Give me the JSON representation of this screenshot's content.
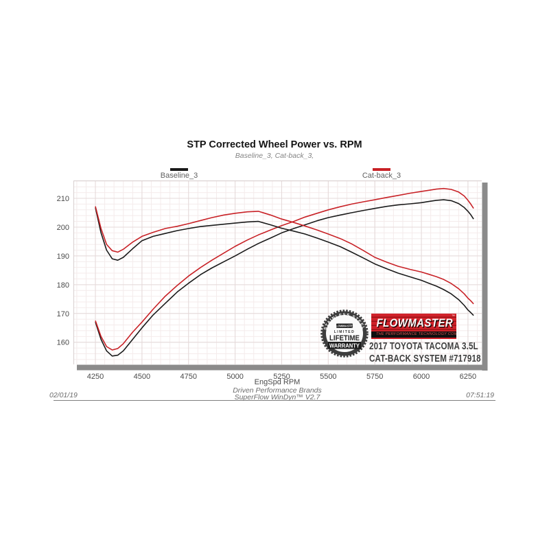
{
  "page": {
    "title": "STP Corrected Wheel Power vs. RPM",
    "subtitle": "Baseline_3, Cat-back_3,"
  },
  "legend": [
    {
      "label": "Baseline_3",
      "color": "#1a1a1a"
    },
    {
      "label": "Cat-back_3",
      "color": "#c82126"
    }
  ],
  "footer": {
    "brand_line1": "Driven Performance Brands",
    "brand_line2": "SuperFlow WinDyn™ V2.7",
    "date": "02/01/19",
    "time": "07:51:19"
  },
  "logo": {
    "badge": {
      "arc_top": "STAINLESS STEEL",
      "brand": "FLOWMASTER",
      "limited": "LIMITED",
      "line1": "LIFETIME",
      "line2": "WARRANTY"
    },
    "flowmaster": {
      "brand": "FLOWMASTER",
      "tm": "™",
      "tagline": "THE PERFORMANCE TECHNOLOGY COMPANY"
    },
    "vehicle_line1": "2017 TOYOTA TACOMA 3.5L",
    "vehicle_line2": "CAT-BACK SYSTEM #717918"
  },
  "chart_data": {
    "type": "line",
    "title": "STP Corrected Wheel Power vs. RPM",
    "subtitle": "Baseline_3, Cat-back_3,",
    "xlabel": "EngSpd  RPM",
    "x_ticks": [
      4250,
      4500,
      4750,
      5000,
      5250,
      5500,
      5750,
      6000,
      6250
    ],
    "y_ticks": [
      160,
      170,
      180,
      190,
      200,
      210
    ],
    "xlim": [
      4132,
      6324
    ],
    "ylim": [
      152.3,
      216.2
    ],
    "grid": {
      "x_minor_step": 50,
      "x_major_step": 250,
      "y_minor_step": 2,
      "y_major_step": 10,
      "minor_color": "#f4ebeb",
      "major_color": "#e4d9d9"
    },
    "legend_position": "top",
    "x": [
      4250,
      4280,
      4310,
      4340,
      4370,
      4400,
      4450,
      4500,
      4560,
      4625,
      4690,
      4750,
      4815,
      4875,
      4940,
      5000,
      5065,
      5125,
      5190,
      5250,
      5315,
      5375,
      5440,
      5500,
      5565,
      5625,
      5690,
      5750,
      5815,
      5875,
      5940,
      6000,
      6040,
      6080,
      6120,
      6160,
      6200,
      6230,
      6250,
      6265,
      6280
    ],
    "series": [
      {
        "name": "Baseline_3 power (rising curve)",
        "legend": "Baseline_3",
        "color": "#1a1a1a",
        "values": [
          167,
          161,
          157,
          155.2,
          155.5,
          157,
          161,
          165,
          169.5,
          173.5,
          177.5,
          180.5,
          183.5,
          185.8,
          188,
          190,
          192.3,
          194.3,
          196.2,
          198,
          199.5,
          200.8,
          202.2,
          203.3,
          204.2,
          205,
          205.8,
          206.5,
          207.2,
          207.7,
          208.1,
          208.5,
          208.9,
          209.3,
          209.5,
          209.2,
          208.2,
          206.8,
          205.5,
          204.3,
          202.8
        ]
      },
      {
        "name": "Cat-back_3 power (rising curve)",
        "legend": "Cat-back_3",
        "color": "#c82126",
        "values": [
          167.5,
          162,
          158.5,
          157.3,
          157.8,
          159.5,
          163.5,
          167,
          171.5,
          176,
          179.8,
          183,
          186,
          188.5,
          191,
          193.3,
          195.5,
          197.3,
          199,
          200.5,
          202,
          203.5,
          204.8,
          206,
          207.1,
          208,
          208.8,
          209.5,
          210.3,
          211,
          211.8,
          212.4,
          212.8,
          213.2,
          213.4,
          213.1,
          212.2,
          210.8,
          209.3,
          208,
          206.5
        ]
      },
      {
        "name": "Baseline_3 upper (falling curve)",
        "legend": "Baseline_3",
        "color": "#1a1a1a",
        "values": [
          206.8,
          198,
          192,
          189,
          188.5,
          189.5,
          192.5,
          195.3,
          196.8,
          197.8,
          198.8,
          199.5,
          200.2,
          200.6,
          201,
          201.4,
          201.8,
          202,
          200.8,
          199.6,
          198.6,
          197.6,
          196.2,
          194.8,
          193.2,
          191.3,
          189.2,
          187.2,
          185.5,
          184,
          182.7,
          181.5,
          180.5,
          179.5,
          178.3,
          176.8,
          174.8,
          172.8,
          171.2,
          170.3,
          169.3
        ]
      },
      {
        "name": "Cat-back_3 upper (falling curve)",
        "legend": "Cat-back_3",
        "color": "#c82126",
        "values": [
          207.2,
          199.5,
          194,
          191.8,
          191.3,
          192.3,
          194.8,
          196.8,
          198.2,
          199.5,
          200.3,
          201.2,
          202.3,
          203.3,
          204.2,
          204.8,
          205.3,
          205.5,
          204.2,
          202.8,
          201.6,
          200.4,
          199,
          197.6,
          196,
          194.2,
          191.8,
          189.5,
          187.8,
          186.4,
          185.3,
          184.4,
          183.6,
          182.8,
          181.8,
          180.4,
          178.6,
          176.8,
          175.3,
          174.4,
          173.3
        ]
      }
    ]
  }
}
